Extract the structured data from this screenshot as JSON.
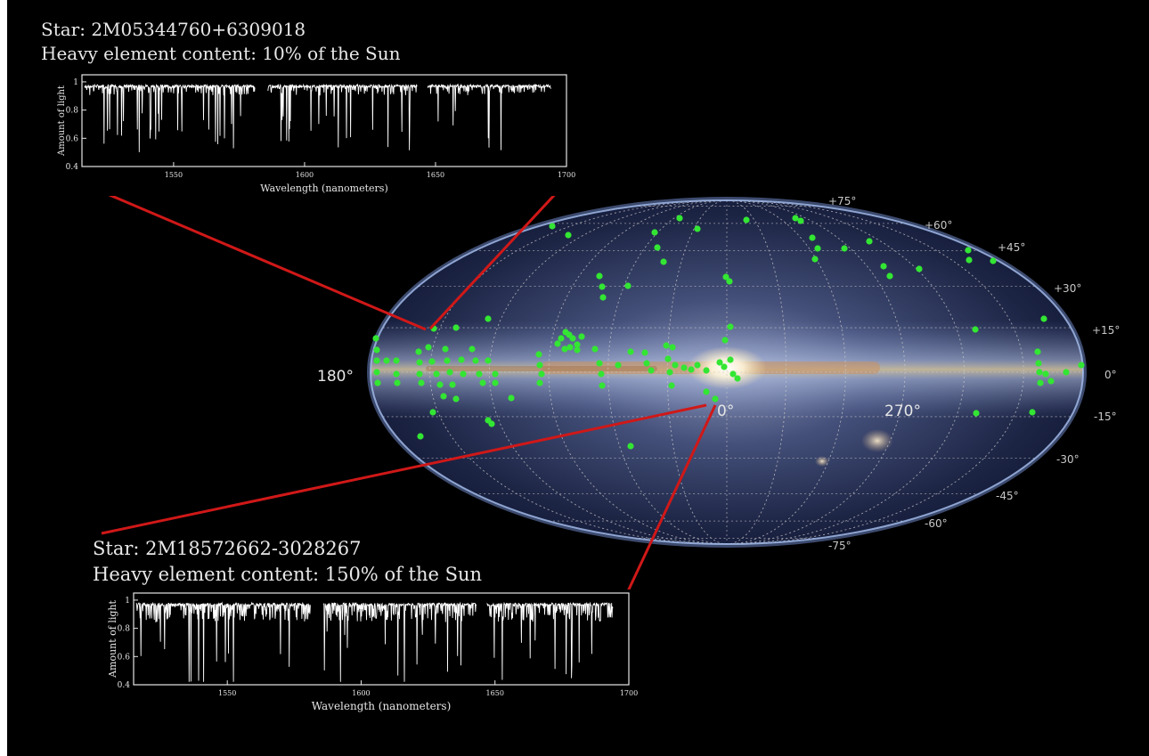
{
  "spectra": [
    {
      "star_label": "Star: 2M05344760+6309018",
      "metal_label": "Heavy element content: 10% of the Sun",
      "ylabel": "Amount of light",
      "xlabel": "Wavelength (nanometers)",
      "yticks": [
        "1",
        "0.8",
        "0.6",
        "0.4"
      ],
      "xticks": [
        "1550",
        "1600",
        "1650",
        "1700"
      ],
      "seed": 7,
      "depth": 0.5
    },
    {
      "star_label": "Star: 2M18572662-3028267",
      "metal_label": "Heavy element content: 150% of the Sun",
      "ylabel": "Amount of light",
      "xlabel": "Wavelength (nanometers)",
      "yticks": [
        "1",
        "0.8",
        "0.6",
        "0.4"
      ],
      "xticks": [
        "1550",
        "1600",
        "1650",
        "1700"
      ],
      "seed": 19,
      "depth": 1.0
    }
  ],
  "sky_map": {
    "latitude_labels_right": [
      "+75°",
      "+60°",
      "+45°",
      "+30°",
      "+15°",
      "0°",
      "-15°",
      "-30°",
      "-45°",
      "-60°",
      "-75°"
    ],
    "longitude_labels": [
      "180°",
      "0°",
      "270°"
    ],
    "star_color": "#33e633",
    "connector_color": "#d01818"
  }
}
